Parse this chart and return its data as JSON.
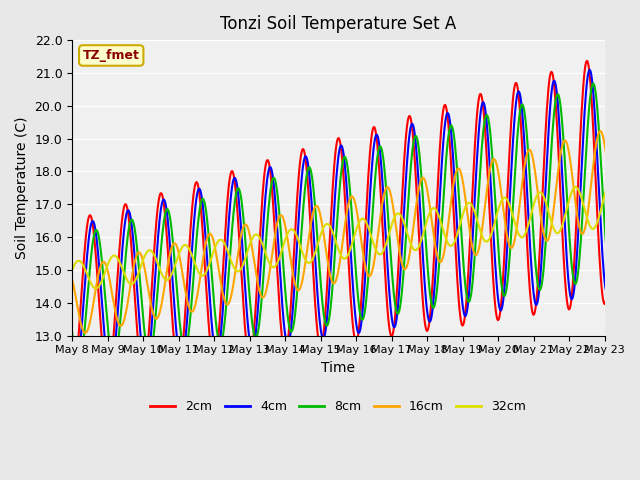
{
  "title": "Tonzi Soil Temperature Set A",
  "xlabel": "Time",
  "ylabel": "Soil Temperature (C)",
  "ylim": [
    13.0,
    22.0
  ],
  "yticks": [
    13.0,
    14.0,
    15.0,
    16.0,
    17.0,
    18.0,
    19.0,
    20.0,
    21.0,
    22.0
  ],
  "x_tick_labels": [
    "May 8",
    "May 9",
    "May 10",
    "May 11",
    "May 12",
    "May 13",
    "May 14",
    "May 15",
    "May 16",
    "May 17",
    "May 18",
    "May 19",
    "May 20",
    "May 21",
    "May 22",
    "May 23"
  ],
  "colors": {
    "2cm": "#FF0000",
    "4cm": "#0000FF",
    "8cm": "#00BB00",
    "16cm": "#FFA500",
    "32cm": "#DDDD00"
  },
  "legend_labels": [
    "2cm",
    "4cm",
    "8cm",
    "16cm",
    "32cm"
  ],
  "annotation_text": "TZ_fmet",
  "annotation_box_color": "#FFFFCC",
  "annotation_box_edgecolor": "#CCAA00",
  "background_color": "#E8E8E8",
  "plot_bg_color": "#F0F0F0",
  "grid_color": "#FFFFFF",
  "linewidth": 1.5
}
